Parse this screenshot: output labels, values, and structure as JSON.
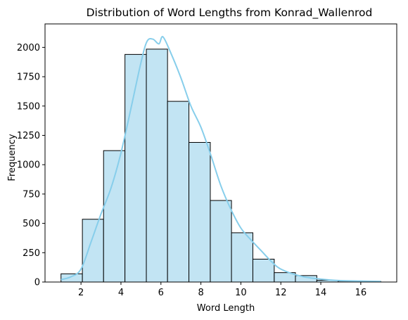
{
  "chart_data": {
    "type": "bar",
    "title": "Distribution of Word Lengths from Konrad_Wallenrod",
    "xlabel": "Word Length",
    "ylabel": "Frequency",
    "xlim": [
      0.2,
      17.8
    ],
    "ylim": [
      0,
      2200
    ],
    "x_ticks": [
      2,
      4,
      6,
      8,
      10,
      12,
      14,
      16
    ],
    "y_ticks": [
      0,
      250,
      500,
      750,
      1000,
      1250,
      1500,
      1750,
      2000
    ],
    "bins": [
      {
        "start": 1.0,
        "end": 2.07,
        "value": 70
      },
      {
        "start": 2.07,
        "end": 3.13,
        "value": 535
      },
      {
        "start": 3.13,
        "end": 4.2,
        "value": 1120
      },
      {
        "start": 4.2,
        "end": 5.27,
        "value": 1940
      },
      {
        "start": 5.27,
        "end": 6.33,
        "value": 1985
      },
      {
        "start": 6.33,
        "end": 7.4,
        "value": 1540
      },
      {
        "start": 7.4,
        "end": 8.47,
        "value": 1190
      },
      {
        "start": 8.47,
        "end": 9.53,
        "value": 695
      },
      {
        "start": 9.53,
        "end": 10.6,
        "value": 420
      },
      {
        "start": 10.6,
        "end": 11.67,
        "value": 195
      },
      {
        "start": 11.67,
        "end": 12.73,
        "value": 80
      },
      {
        "start": 12.73,
        "end": 13.8,
        "value": 55
      },
      {
        "start": 13.8,
        "end": 14.87,
        "value": 15
      },
      {
        "start": 14.87,
        "end": 15.93,
        "value": 8
      },
      {
        "start": 15.93,
        "end": 17.0,
        "value": 5
      }
    ],
    "kde": {
      "x": [
        1,
        1.5,
        2,
        2.5,
        3,
        3.5,
        4,
        4.5,
        5,
        5.3,
        5.6,
        5.9,
        6.1,
        6.5,
        7,
        7.5,
        8,
        8.5,
        9,
        9.5,
        10,
        10.5,
        11,
        11.5,
        12,
        13,
        14,
        15,
        16,
        17
      ],
      "y": [
        20,
        45,
        110,
        340,
        580,
        800,
        1100,
        1480,
        1870,
        2050,
        2070,
        2030,
        2090,
        1950,
        1740,
        1500,
        1320,
        1080,
        820,
        620,
        460,
        360,
        270,
        180,
        110,
        50,
        25,
        12,
        8,
        5
      ]
    },
    "colors": {
      "bar_fill": "#c2e4f3",
      "bar_edge": "#000000",
      "kde_line": "#87ceeb"
    },
    "grid": false,
    "legend": "none"
  }
}
